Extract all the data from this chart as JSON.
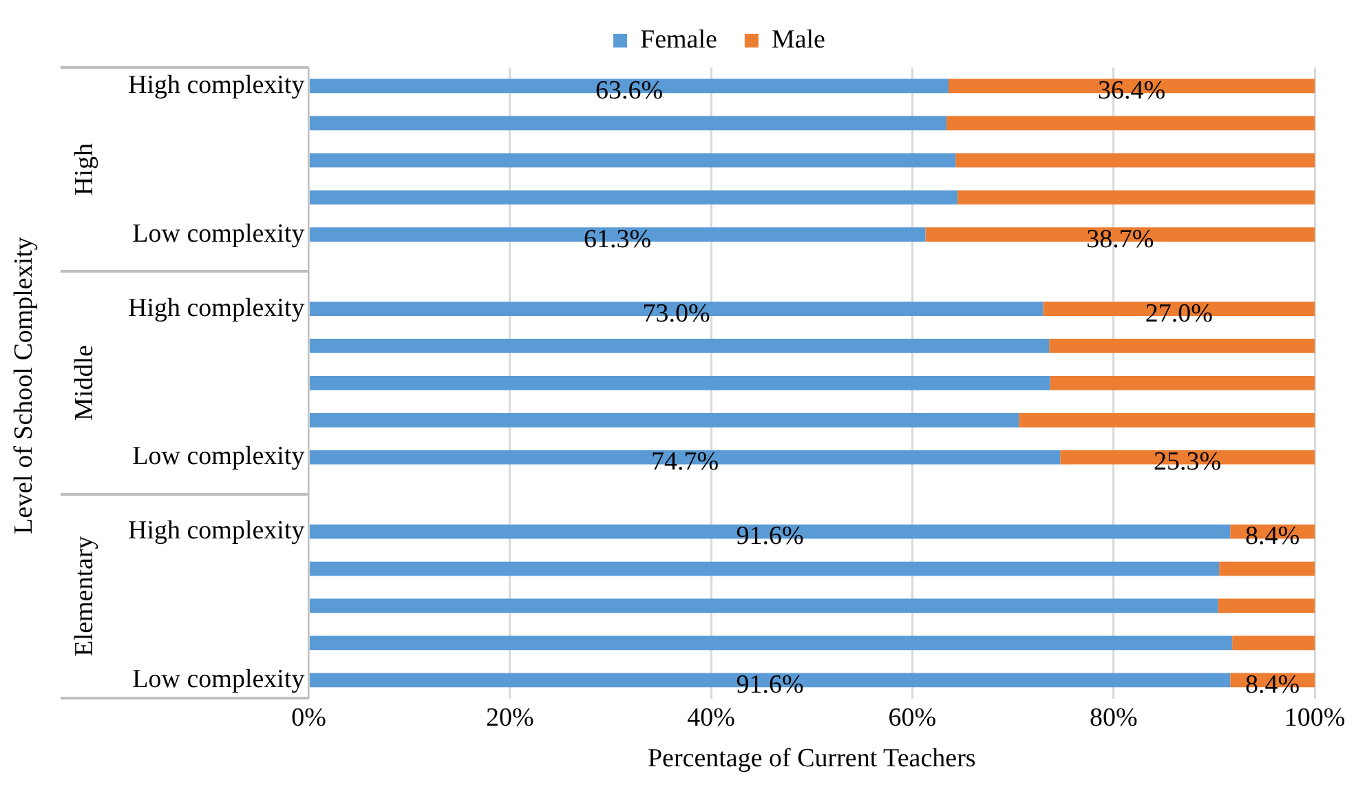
{
  "chart_data": {
    "type": "bar",
    "orientation": "horizontal",
    "stacked": true,
    "xlabel": "Percentage of Current Teachers",
    "ylabel": "Level of School Complexity",
    "categories": [
      "High complexity",
      null,
      null,
      null,
      "Low complexity",
      null,
      "High complexity",
      null,
      null,
      null,
      "Low complexity",
      null,
      "High complexity",
      null,
      null,
      null,
      "Low complexity"
    ],
    "series": [
      {
        "name": "Female",
        "color": "#5b9bd5",
        "values": [
          63.6,
          63.4,
          64.3,
          64.5,
          61.3,
          null,
          73.0,
          73.6,
          73.7,
          70.6,
          74.7,
          null,
          91.6,
          90.5,
          90.4,
          91.8,
          91.6
        ],
        "value_labels": [
          "63.6%",
          null,
          null,
          null,
          "61.3%",
          null,
          "73.0%",
          null,
          null,
          null,
          "74.7%",
          null,
          "91.6%",
          null,
          null,
          null,
          "91.6%"
        ]
      },
      {
        "name": "Male",
        "color": "#ed7d31",
        "values": [
          36.4,
          36.6,
          35.7,
          35.5,
          38.7,
          null,
          27.0,
          26.4,
          26.3,
          29.4,
          25.3,
          null,
          8.4,
          9.5,
          9.6,
          8.2,
          8.4
        ],
        "value_labels": [
          "36.4%",
          null,
          null,
          null,
          "38.7%",
          null,
          "27.0%",
          null,
          null,
          null,
          "25.3%",
          null,
          "8.4%",
          null,
          null,
          null,
          "8.4%"
        ]
      }
    ],
    "xlim": [
      0,
      100
    ],
    "xticks": [
      {
        "value": 0,
        "label": "0%"
      },
      {
        "value": 20,
        "label": "20%"
      },
      {
        "value": 40,
        "label": "40%"
      },
      {
        "value": 60,
        "label": "60%"
      },
      {
        "value": 80,
        "label": "80%"
      },
      {
        "value": 100,
        "label": "100%"
      }
    ],
    "grid": "x",
    "legend": "top",
    "annotations": [
      "High",
      "Middle",
      "Elementary"
    ]
  }
}
